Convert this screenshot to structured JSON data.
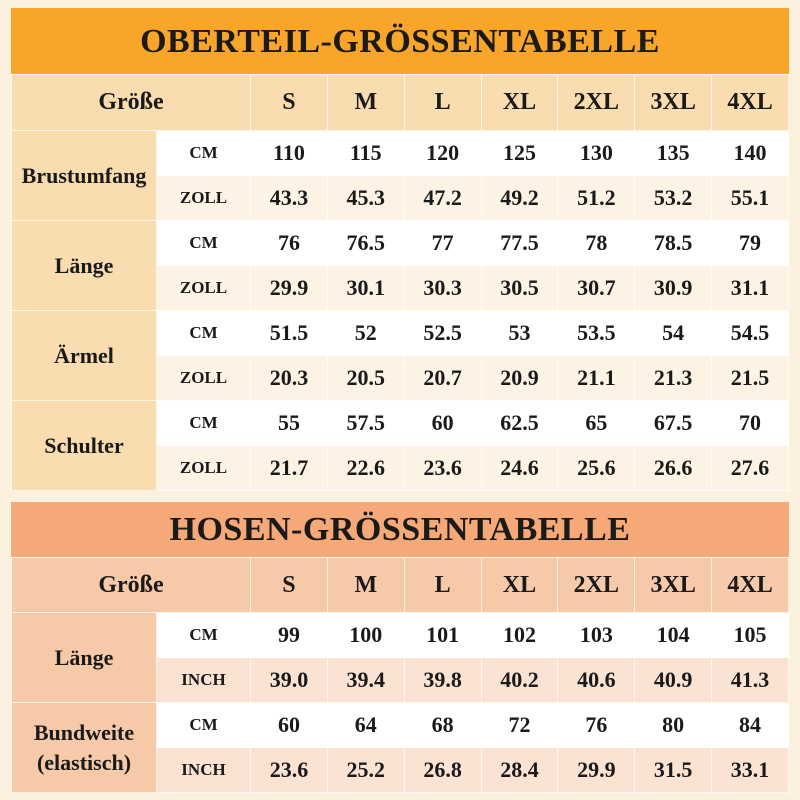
{
  "sizes": [
    "S",
    "M",
    "L",
    "XL",
    "2XL",
    "3XL",
    "4XL"
  ],
  "top": {
    "title": "OBERTEIL-GRÖSSENTABELLE",
    "size_label": "Größe",
    "rows": [
      {
        "label": "Brustumfang",
        "u1": "CM",
        "v1": [
          "110",
          "115",
          "120",
          "125",
          "130",
          "135",
          "140"
        ],
        "u2": "ZOLL",
        "v2": [
          "43.3",
          "45.3",
          "47.2",
          "49.2",
          "51.2",
          "53.2",
          "55.1"
        ]
      },
      {
        "label": "Länge",
        "u1": "CM",
        "v1": [
          "76",
          "76.5",
          "77",
          "77.5",
          "78",
          "78.5",
          "79"
        ],
        "u2": "ZOLL",
        "v2": [
          "29.9",
          "30.1",
          "30.3",
          "30.5",
          "30.7",
          "30.9",
          "31.1"
        ]
      },
      {
        "label": "Ärmel",
        "u1": "CM",
        "v1": [
          "51.5",
          "52",
          "52.5",
          "53",
          "53.5",
          "54",
          "54.5"
        ],
        "u2": "ZOLL",
        "v2": [
          "20.3",
          "20.5",
          "20.7",
          "20.9",
          "21.1",
          "21.3",
          "21.5"
        ]
      },
      {
        "label": "Schulter",
        "u1": "CM",
        "v1": [
          "55",
          "57.5",
          "60",
          "62.5",
          "65",
          "67.5",
          "70"
        ],
        "u2": "ZOLL",
        "v2": [
          "21.7",
          "22.6",
          "23.6",
          "24.6",
          "25.6",
          "26.6",
          "27.6"
        ]
      }
    ]
  },
  "bottom": {
    "title": "HOSEN-GRÖSSENTABELLE",
    "size_label": "Größe",
    "rows": [
      {
        "label": "Länge",
        "u1": "CM",
        "v1": [
          "99",
          "100",
          "101",
          "102",
          "103",
          "104",
          "105"
        ],
        "u2": "INCH",
        "v2": [
          "39.0",
          "39.4",
          "39.8",
          "40.2",
          "40.6",
          "40.9",
          "41.3"
        ]
      },
      {
        "label": "Bundweite\n(elastisch)",
        "u1": "CM",
        "v1": [
          "60",
          "64",
          "68",
          "72",
          "76",
          "80",
          "84"
        ],
        "u2": "INCH",
        "v2": [
          "23.6",
          "25.2",
          "26.8",
          "28.4",
          "29.9",
          "31.5",
          "33.1"
        ]
      }
    ]
  },
  "colors": {
    "top_title": "#f8a52a",
    "bottom_title": "#f5a878",
    "top_header": "#f9dcb0",
    "bottom_header": "#f6c9a8"
  }
}
